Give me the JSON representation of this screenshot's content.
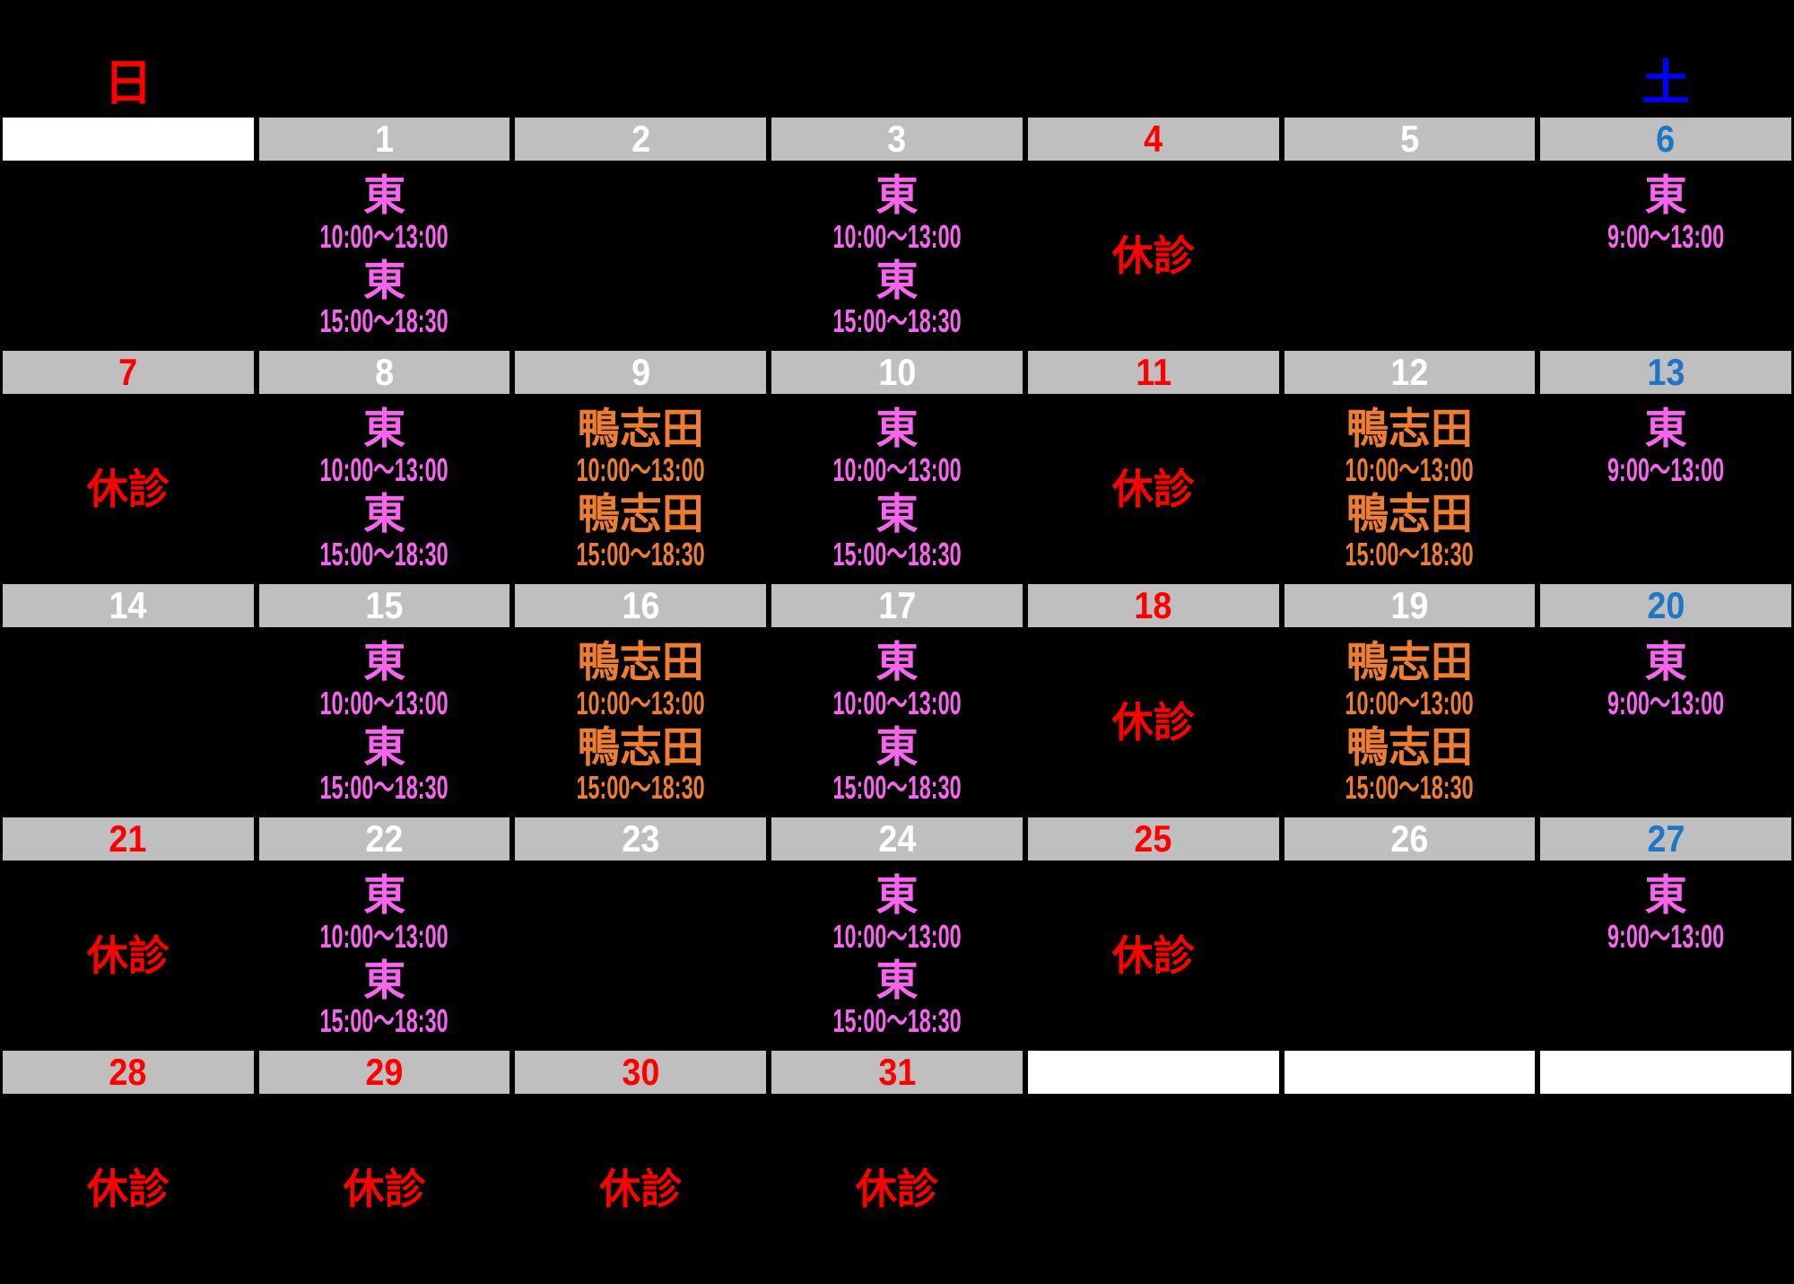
{
  "header": {
    "sunday_label": "日",
    "saturday_label": "土"
  },
  "closed_label": "休診",
  "doctors": {
    "east": "東",
    "kamoshida": "鴨志田"
  },
  "colors": {
    "background": "#000000",
    "bar_gray": "#bfbfbf",
    "bar_white": "#ffffff",
    "date_default": "#ffffff",
    "date_holiday": "#ff0000",
    "date_saturday": "#1d76c6",
    "header_sunday": "#ff0000",
    "header_saturday": "#0000ff",
    "doctor_east": "#f765ef",
    "doctor_kamoshida": "#ed7d31",
    "closed_red": "#ff0000"
  },
  "weeks": [
    {
      "days": [
        {
          "bar": "white",
          "date": "",
          "date_style": "default",
          "closed": false,
          "entries": []
        },
        {
          "bar": "gray",
          "date": "1",
          "date_style": "default",
          "closed": false,
          "entries": [
            {
              "doctor": "東",
              "time": "10:00～13:00",
              "style": "east"
            },
            {
              "doctor": "東",
              "time": "15:00～18:30",
              "style": "east"
            }
          ]
        },
        {
          "bar": "gray",
          "date": "2",
          "date_style": "default",
          "closed": false,
          "entries": []
        },
        {
          "bar": "gray",
          "date": "3",
          "date_style": "default",
          "closed": false,
          "entries": [
            {
              "doctor": "東",
              "time": "10:00～13:00",
              "style": "east"
            },
            {
              "doctor": "東",
              "time": "15:00～18:30",
              "style": "east"
            }
          ]
        },
        {
          "bar": "gray",
          "date": "4",
          "date_style": "holiday",
          "closed": true,
          "entries": []
        },
        {
          "bar": "gray",
          "date": "5",
          "date_style": "default",
          "closed": false,
          "entries": []
        },
        {
          "bar": "gray",
          "date": "6",
          "date_style": "saturday",
          "closed": false,
          "entries": [
            {
              "doctor": "東",
              "time": "9:00～13:00",
              "style": "east"
            }
          ]
        }
      ]
    },
    {
      "days": [
        {
          "bar": "gray",
          "date": "7",
          "date_style": "holiday",
          "closed": true,
          "entries": []
        },
        {
          "bar": "gray",
          "date": "8",
          "date_style": "default",
          "closed": false,
          "entries": [
            {
              "doctor": "東",
              "time": "10:00～13:00",
              "style": "east"
            },
            {
              "doctor": "東",
              "time": "15:00～18:30",
              "style": "east"
            }
          ]
        },
        {
          "bar": "gray",
          "date": "9",
          "date_style": "default",
          "closed": false,
          "entries": [
            {
              "doctor": "鴨志田",
              "time": "10:00～13:00",
              "style": "kamoshida"
            },
            {
              "doctor": "鴨志田",
              "time": "15:00～18:30",
              "style": "kamoshida"
            }
          ]
        },
        {
          "bar": "gray",
          "date": "10",
          "date_style": "default",
          "closed": false,
          "entries": [
            {
              "doctor": "東",
              "time": "10:00～13:00",
              "style": "east"
            },
            {
              "doctor": "東",
              "time": "15:00～18:30",
              "style": "east"
            }
          ]
        },
        {
          "bar": "gray",
          "date": "11",
          "date_style": "holiday",
          "closed": true,
          "entries": []
        },
        {
          "bar": "gray",
          "date": "12",
          "date_style": "default",
          "closed": false,
          "entries": [
            {
              "doctor": "鴨志田",
              "time": "10:00～13:00",
              "style": "kamoshida"
            },
            {
              "doctor": "鴨志田",
              "time": "15:00～18:30",
              "style": "kamoshida"
            }
          ]
        },
        {
          "bar": "gray",
          "date": "13",
          "date_style": "saturday",
          "closed": false,
          "entries": [
            {
              "doctor": "東",
              "time": "9:00～13:00",
              "style": "east"
            }
          ]
        }
      ]
    },
    {
      "days": [
        {
          "bar": "gray",
          "date": "14",
          "date_style": "default",
          "closed": false,
          "entries": []
        },
        {
          "bar": "gray",
          "date": "15",
          "date_style": "default",
          "closed": false,
          "entries": [
            {
              "doctor": "東",
              "time": "10:00～13:00",
              "style": "east"
            },
            {
              "doctor": "東",
              "time": "15:00～18:30",
              "style": "east"
            }
          ]
        },
        {
          "bar": "gray",
          "date": "16",
          "date_style": "default",
          "closed": false,
          "entries": [
            {
              "doctor": "鴨志田",
              "time": "10:00～13:00",
              "style": "kamoshida"
            },
            {
              "doctor": "鴨志田",
              "time": "15:00～18:30",
              "style": "kamoshida"
            }
          ]
        },
        {
          "bar": "gray",
          "date": "17",
          "date_style": "default",
          "closed": false,
          "entries": [
            {
              "doctor": "東",
              "time": "10:00～13:00",
              "style": "east"
            },
            {
              "doctor": "東",
              "time": "15:00～18:30",
              "style": "east"
            }
          ]
        },
        {
          "bar": "gray",
          "date": "18",
          "date_style": "holiday",
          "closed": true,
          "entries": []
        },
        {
          "bar": "gray",
          "date": "19",
          "date_style": "default",
          "closed": false,
          "entries": [
            {
              "doctor": "鴨志田",
              "time": "10:00～13:00",
              "style": "kamoshida"
            },
            {
              "doctor": "鴨志田",
              "time": "15:00～18:30",
              "style": "kamoshida"
            }
          ]
        },
        {
          "bar": "gray",
          "date": "20",
          "date_style": "saturday",
          "closed": false,
          "entries": [
            {
              "doctor": "東",
              "time": "9:00～13:00",
              "style": "east"
            }
          ]
        }
      ]
    },
    {
      "days": [
        {
          "bar": "gray",
          "date": "21",
          "date_style": "holiday",
          "closed": true,
          "entries": []
        },
        {
          "bar": "gray",
          "date": "22",
          "date_style": "default",
          "closed": false,
          "entries": [
            {
              "doctor": "東",
              "time": "10:00～13:00",
              "style": "east"
            },
            {
              "doctor": "東",
              "time": "15:00～18:30",
              "style": "east"
            }
          ]
        },
        {
          "bar": "gray",
          "date": "23",
          "date_style": "default",
          "closed": false,
          "entries": []
        },
        {
          "bar": "gray",
          "date": "24",
          "date_style": "default",
          "closed": false,
          "entries": [
            {
              "doctor": "東",
              "time": "10:00～13:00",
              "style": "east"
            },
            {
              "doctor": "東",
              "time": "15:00～18:30",
              "style": "east"
            }
          ]
        },
        {
          "bar": "gray",
          "date": "25",
          "date_style": "holiday",
          "closed": true,
          "entries": []
        },
        {
          "bar": "gray",
          "date": "26",
          "date_style": "default",
          "closed": false,
          "entries": []
        },
        {
          "bar": "gray",
          "date": "27",
          "date_style": "saturday",
          "closed": false,
          "entries": [
            {
              "doctor": "東",
              "time": "9:00～13:00",
              "style": "east"
            }
          ]
        }
      ]
    },
    {
      "days": [
        {
          "bar": "gray",
          "date": "28",
          "date_style": "holiday",
          "closed": true,
          "entries": []
        },
        {
          "bar": "gray",
          "date": "29",
          "date_style": "holiday",
          "closed": true,
          "entries": []
        },
        {
          "bar": "gray",
          "date": "30",
          "date_style": "holiday",
          "closed": true,
          "entries": []
        },
        {
          "bar": "gray",
          "date": "31",
          "date_style": "holiday",
          "closed": true,
          "entries": []
        },
        {
          "bar": "white",
          "date": "",
          "date_style": "default",
          "closed": false,
          "entries": []
        },
        {
          "bar": "white",
          "date": "",
          "date_style": "default",
          "closed": false,
          "entries": []
        },
        {
          "bar": "white",
          "date": "",
          "date_style": "default",
          "closed": false,
          "entries": []
        }
      ]
    }
  ]
}
